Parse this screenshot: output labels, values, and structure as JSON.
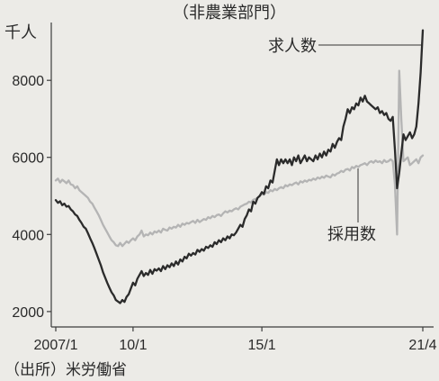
{
  "chart_data": {
    "type": "line",
    "subtitle": "（非農業部門）",
    "ylabel": "千人",
    "source": "（出所）米労働省",
    "ylim": [
      1600,
      9500
    ],
    "xlim": [
      "2007-01",
      "2021-04"
    ],
    "grid": false,
    "y_ticks": [
      2000,
      4000,
      6000,
      8000
    ],
    "x_ticks": [
      {
        "date": "2007-01",
        "label": "2007/1"
      },
      {
        "date": "2010-01",
        "label": "10/1"
      },
      {
        "date": "2015-01",
        "label": "15/1"
      },
      {
        "date": "2021-04",
        "label": "21/4"
      }
    ],
    "x": [
      "2007-01",
      "2007-02",
      "2007-03",
      "2007-04",
      "2007-05",
      "2007-06",
      "2007-07",
      "2007-08",
      "2007-09",
      "2007-10",
      "2007-11",
      "2007-12",
      "2008-01",
      "2008-02",
      "2008-03",
      "2008-04",
      "2008-05",
      "2008-06",
      "2008-07",
      "2008-08",
      "2008-09",
      "2008-10",
      "2008-11",
      "2008-12",
      "2009-01",
      "2009-02",
      "2009-03",
      "2009-04",
      "2009-05",
      "2009-06",
      "2009-07",
      "2009-08",
      "2009-09",
      "2009-10",
      "2009-11",
      "2009-12",
      "2010-01",
      "2010-02",
      "2010-03",
      "2010-04",
      "2010-05",
      "2010-06",
      "2010-07",
      "2010-08",
      "2010-09",
      "2010-10",
      "2010-11",
      "2010-12",
      "2011-01",
      "2011-02",
      "2011-03",
      "2011-04",
      "2011-05",
      "2011-06",
      "2011-07",
      "2011-08",
      "2011-09",
      "2011-10",
      "2011-11",
      "2011-12",
      "2012-01",
      "2012-02",
      "2012-03",
      "2012-04",
      "2012-05",
      "2012-06",
      "2012-07",
      "2012-08",
      "2012-09",
      "2012-10",
      "2012-11",
      "2012-12",
      "2013-01",
      "2013-02",
      "2013-03",
      "2013-04",
      "2013-05",
      "2013-06",
      "2013-07",
      "2013-08",
      "2013-09",
      "2013-10",
      "2013-11",
      "2013-12",
      "2014-01",
      "2014-02",
      "2014-03",
      "2014-04",
      "2014-05",
      "2014-06",
      "2014-07",
      "2014-08",
      "2014-09",
      "2014-10",
      "2014-11",
      "2014-12",
      "2015-01",
      "2015-02",
      "2015-03",
      "2015-04",
      "2015-05",
      "2015-06",
      "2015-07",
      "2015-08",
      "2015-09",
      "2015-10",
      "2015-11",
      "2015-12",
      "2016-01",
      "2016-02",
      "2016-03",
      "2016-04",
      "2016-05",
      "2016-06",
      "2016-07",
      "2016-08",
      "2016-09",
      "2016-10",
      "2016-11",
      "2016-12",
      "2017-01",
      "2017-02",
      "2017-03",
      "2017-04",
      "2017-05",
      "2017-06",
      "2017-07",
      "2017-08",
      "2017-09",
      "2017-10",
      "2017-11",
      "2017-12",
      "2018-01",
      "2018-02",
      "2018-03",
      "2018-04",
      "2018-05",
      "2018-06",
      "2018-07",
      "2018-08",
      "2018-09",
      "2018-10",
      "2018-11",
      "2018-12",
      "2019-01",
      "2019-02",
      "2019-03",
      "2019-04",
      "2019-05",
      "2019-06",
      "2019-07",
      "2019-08",
      "2019-09",
      "2019-10",
      "2019-11",
      "2019-12",
      "2020-01",
      "2020-02",
      "2020-03",
      "2020-04",
      "2020-05",
      "2020-06",
      "2020-07",
      "2020-08",
      "2020-09",
      "2020-10",
      "2020-11",
      "2020-12",
      "2021-01",
      "2021-02",
      "2021-03",
      "2021-04"
    ],
    "series": [
      {
        "name": "求人数",
        "color": "#2b2b2b",
        "values": [
          4890,
          4820,
          4860,
          4760,
          4800,
          4720,
          4740,
          4650,
          4600,
          4520,
          4480,
          4380,
          4300,
          4200,
          4150,
          4030,
          3900,
          3780,
          3650,
          3500,
          3350,
          3200,
          3020,
          2880,
          2740,
          2620,
          2500,
          2420,
          2300,
          2260,
          2220,
          2300,
          2250,
          2380,
          2450,
          2600,
          2750,
          2680,
          2850,
          2950,
          3050,
          2920,
          3000,
          2950,
          3080,
          2980,
          3100,
          3060,
          3120,
          3050,
          3180,
          3100,
          3200,
          3150,
          3250,
          3180,
          3300,
          3220,
          3350,
          3300,
          3420,
          3380,
          3500,
          3450,
          3520,
          3480,
          3600,
          3550,
          3620,
          3580,
          3680,
          3650,
          3720,
          3680,
          3800,
          3750,
          3850,
          3800,
          3900,
          3850,
          3950,
          3900,
          4000,
          3980,
          4050,
          4150,
          4250,
          4200,
          4400,
          4500,
          4650,
          4600,
          4850,
          4800,
          4950,
          5000,
          5100,
          5050,
          5250,
          5200,
          5400,
          5350,
          5650,
          5950,
          5800,
          5950,
          5850,
          5950,
          5850,
          5950,
          5800,
          6000,
          5900,
          6050,
          5850,
          5950,
          6050,
          5900,
          6000,
          5950,
          5900,
          6050,
          5950,
          6100,
          6000,
          6150,
          6050,
          6200,
          6150,
          6350,
          6250,
          6400,
          6500,
          6450,
          6800,
          7000,
          7250,
          7150,
          7300,
          7250,
          7400,
          7350,
          7550,
          7450,
          7600,
          7450,
          7400,
          7350,
          7300,
          7250,
          7300,
          7150,
          7200,
          7100,
          7150,
          7000,
          6950,
          7050,
          6200,
          5200,
          5600,
          6100,
          6600,
          6450,
          6550,
          6650,
          6500,
          6600,
          6800,
          7400,
          8200,
          9300
        ]
      },
      {
        "name": "採用数",
        "color": "#b4b4b4",
        "values": [
          5400,
          5450,
          5350,
          5420,
          5380,
          5330,
          5400,
          5300,
          5280,
          5200,
          5250,
          5150,
          5100,
          5050,
          5000,
          4950,
          4850,
          4800,
          4700,
          4600,
          4500,
          4380,
          4250,
          4150,
          4050,
          3950,
          3850,
          3800,
          3720,
          3700,
          3780,
          3700,
          3760,
          3820,
          3780,
          3850,
          3900,
          3850,
          3950,
          4000,
          4100,
          3950,
          4000,
          3980,
          4050,
          4000,
          4080,
          4050,
          4100,
          4050,
          4150,
          4120,
          4100,
          4180,
          4150,
          4200,
          4180,
          4250,
          4200,
          4280,
          4250,
          4300,
          4280,
          4320,
          4350,
          4300,
          4380,
          4320,
          4360,
          4400,
          4380,
          4450,
          4420,
          4480,
          4450,
          4500,
          4520,
          4480,
          4550,
          4600,
          4570,
          4620,
          4600,
          4650,
          4680,
          4650,
          4720,
          4750,
          4780,
          4800,
          4850,
          4830,
          4900,
          4920,
          4950,
          5000,
          5050,
          5030,
          5100,
          5080,
          5150,
          5120,
          5180,
          5150,
          5200,
          5230,
          5200,
          5280,
          5250,
          5300,
          5280,
          5320,
          5350,
          5300,
          5380,
          5350,
          5400,
          5370,
          5420,
          5400,
          5450,
          5420,
          5480,
          5450,
          5500,
          5470,
          5530,
          5500,
          5480,
          5560,
          5530,
          5580,
          5600,
          5650,
          5620,
          5680,
          5700,
          5660,
          5750,
          5720,
          5780,
          5750,
          5800,
          5820,
          5850,
          5800,
          5870,
          5900,
          5860,
          5920,
          5880,
          5900,
          5850,
          5930,
          5880,
          5900,
          5950,
          5900,
          5300,
          4000,
          8250,
          7000,
          5900,
          5950,
          6000,
          5800,
          5850,
          5900,
          5950,
          5850,
          6000,
          6050
        ]
      }
    ]
  },
  "colors": {
    "background": "#ecebe7",
    "axis": "#3c3c3c",
    "text": "#2a2a2a"
  }
}
